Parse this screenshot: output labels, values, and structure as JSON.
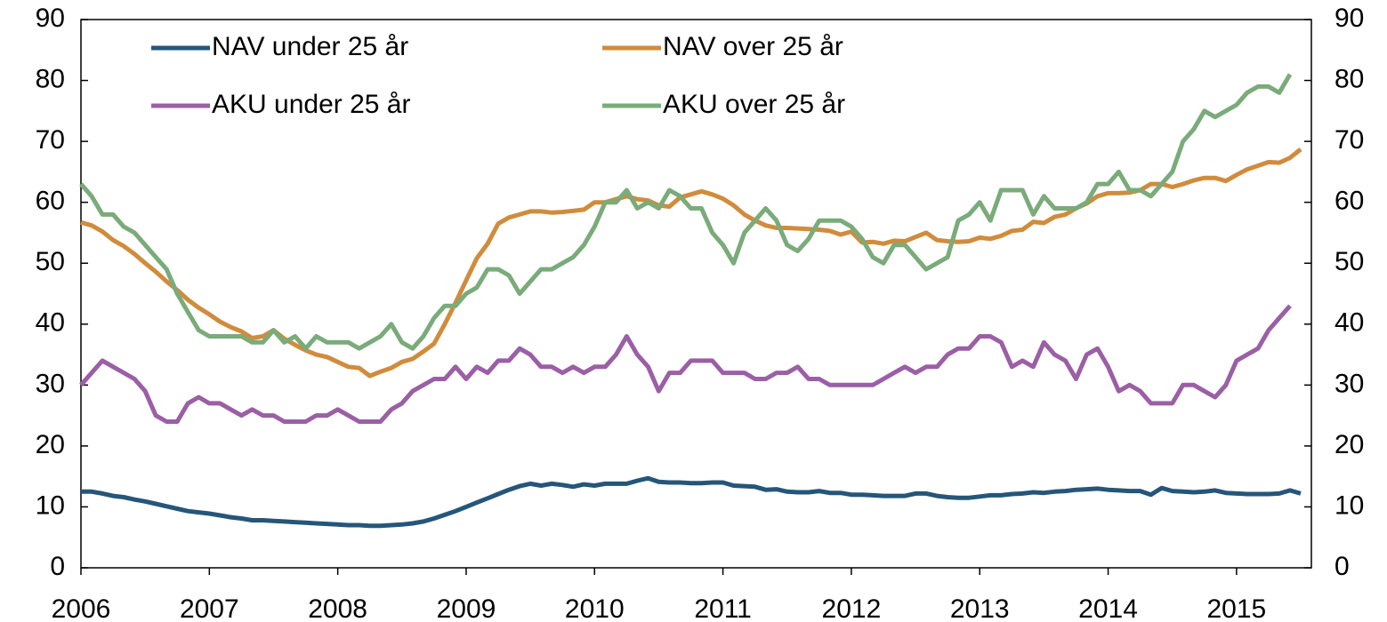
{
  "chart_data": {
    "type": "line",
    "x": [
      2006,
      2006.083,
      2006.167,
      2006.25,
      2006.333,
      2006.417,
      2006.5,
      2006.583,
      2006.667,
      2006.75,
      2006.833,
      2006.917,
      2007,
      2007.083,
      2007.167,
      2007.25,
      2007.333,
      2007.417,
      2007.5,
      2007.583,
      2007.667,
      2007.75,
      2007.833,
      2007.917,
      2008,
      2008.083,
      2008.167,
      2008.25,
      2008.333,
      2008.417,
      2008.5,
      2008.583,
      2008.667,
      2008.75,
      2008.833,
      2008.917,
      2009,
      2009.083,
      2009.167,
      2009.25,
      2009.333,
      2009.417,
      2009.5,
      2009.583,
      2009.667,
      2009.75,
      2009.833,
      2009.917,
      2010,
      2010.083,
      2010.167,
      2010.25,
      2010.333,
      2010.417,
      2010.5,
      2010.583,
      2010.667,
      2010.75,
      2010.833,
      2010.917,
      2011,
      2011.083,
      2011.167,
      2011.25,
      2011.333,
      2011.417,
      2011.5,
      2011.583,
      2011.667,
      2011.75,
      2011.833,
      2011.917,
      2012,
      2012.083,
      2012.167,
      2012.25,
      2012.333,
      2012.417,
      2012.5,
      2012.583,
      2012.667,
      2012.75,
      2012.833,
      2012.917,
      2013,
      2013.083,
      2013.167,
      2013.25,
      2013.333,
      2013.417,
      2013.5,
      2013.583,
      2013.667,
      2013.75,
      2013.833,
      2013.917,
      2014,
      2014.083,
      2014.167,
      2014.25,
      2014.333,
      2014.417,
      2014.5,
      2014.583,
      2014.667,
      2014.75,
      2014.833,
      2014.917,
      2015,
      2015.083,
      2015.167,
      2015.25,
      2015.333,
      2015.417,
      2015.5
    ],
    "series": [
      {
        "name": "NAV under 25 år",
        "color": "#25567a",
        "values": [
          12.5,
          12.5,
          12.2,
          11.8,
          11.6,
          11.2,
          10.9,
          10.5,
          10.1,
          9.7,
          9.3,
          9.1,
          8.9,
          8.6,
          8.3,
          8.1,
          7.8,
          7.8,
          7.7,
          7.6,
          7.5,
          7.4,
          7.3,
          7.2,
          7.1,
          7.0,
          7.0,
          6.9,
          6.9,
          7.0,
          7.1,
          7.3,
          7.6,
          8.1,
          8.7,
          9.3,
          10.0,
          10.7,
          11.4,
          12.1,
          12.8,
          13.4,
          13.8,
          13.5,
          13.8,
          13.6,
          13.3,
          13.7,
          13.5,
          13.8,
          13.8,
          13.8,
          14.3,
          14.7,
          14.1,
          14.0,
          14.0,
          13.9,
          13.9,
          14.0,
          14.0,
          13.5,
          13.4,
          13.3,
          12.8,
          12.9,
          12.5,
          12.4,
          12.4,
          12.6,
          12.3,
          12.3,
          12.0,
          12.0,
          11.9,
          11.8,
          11.8,
          11.8,
          12.2,
          12.2,
          11.8,
          11.6,
          11.5,
          11.5,
          11.7,
          11.9,
          11.9,
          12.1,
          12.2,
          12.4,
          12.3,
          12.5,
          12.6,
          12.8,
          12.9,
          13.0,
          12.8,
          12.7,
          12.6,
          12.6,
          12.0,
          13.1,
          12.6,
          12.5,
          12.4,
          12.5,
          12.7,
          12.3,
          12.2,
          12.1,
          12.1,
          12.1,
          12.2,
          12.7,
          12.2
        ]
      },
      {
        "name": "NAV over 25 år",
        "color": "#d08c3c",
        "values": [
          56.7,
          56.2,
          55.2,
          53.8,
          52.8,
          51.5,
          50.0,
          48.6,
          47.0,
          45.6,
          44.0,
          42.7,
          41.6,
          40.4,
          39.5,
          38.8,
          37.7,
          38.0,
          39.0,
          37.6,
          36.6,
          35.7,
          35.0,
          34.6,
          33.8,
          33.0,
          32.8,
          31.5,
          32.2,
          32.8,
          33.8,
          34.3,
          35.5,
          36.8,
          40.0,
          43.5,
          47.2,
          50.8,
          53.2,
          56.5,
          57.5,
          58.0,
          58.5,
          58.5,
          58.3,
          58.4,
          58.6,
          58.8,
          60.0,
          60.0,
          60.5,
          61.0,
          60.5,
          60.3,
          59.5,
          59.3,
          60.8,
          61.3,
          61.8,
          61.3,
          60.6,
          59.5,
          58.0,
          57.0,
          56.2,
          55.8,
          55.8,
          55.7,
          55.6,
          55.5,
          55.3,
          54.7,
          55.2,
          53.4,
          53.5,
          53.2,
          53.7,
          53.6,
          54.3,
          55.0,
          53.8,
          53.6,
          53.5,
          53.6,
          54.2,
          54.0,
          54.5,
          55.3,
          55.5,
          56.8,
          56.6,
          57.6,
          58.0,
          59.0,
          59.8,
          61.0,
          61.5,
          61.5,
          61.6,
          62.0,
          63.0,
          63.0,
          62.5,
          63.0,
          63.6,
          64.0,
          64.0,
          63.5,
          64.5,
          65.4,
          66.0,
          66.6,
          66.5,
          67.3,
          68.7
        ]
      },
      {
        "name": "AKU under 25 år",
        "color": "#9b5fa6",
        "values": [
          30,
          32,
          34,
          33,
          32,
          31,
          29,
          25,
          24,
          24,
          27,
          28,
          27,
          27,
          26,
          25,
          26,
          25,
          25,
          24,
          24,
          24,
          25,
          25,
          26,
          25,
          24,
          24,
          24,
          26,
          27,
          29,
          30,
          31,
          31,
          33,
          31,
          33,
          32,
          34,
          34,
          36,
          35,
          33,
          33,
          32,
          33,
          32,
          33,
          33,
          35,
          38,
          35,
          33,
          29,
          32,
          32,
          34,
          34,
          34,
          32,
          32,
          32,
          31,
          31,
          32,
          32,
          33,
          31,
          31,
          30,
          30,
          30,
          30,
          30,
          31,
          32,
          33,
          32,
          33,
          33,
          35,
          36,
          36,
          38,
          38,
          37,
          33,
          34,
          33,
          37,
          35,
          34,
          31,
          35,
          36,
          33,
          29,
          30,
          29,
          27,
          27,
          27,
          30,
          30,
          29,
          28,
          30,
          34,
          35,
          36,
          39,
          41,
          43,
          null
        ]
      },
      {
        "name": "AKU over 25 år",
        "color": "#7aab7a",
        "values": [
          63,
          61,
          58,
          58,
          56,
          55,
          53,
          51,
          49,
          45,
          42,
          39,
          38,
          38,
          38,
          38,
          37,
          37,
          39,
          37,
          38,
          36,
          38,
          37,
          37,
          37,
          36,
          37,
          38,
          40,
          37,
          36,
          38,
          41,
          43,
          43,
          45,
          46,
          49,
          49,
          48,
          45,
          47,
          49,
          49,
          50,
          51,
          53,
          56,
          60,
          60,
          62,
          59,
          60,
          59,
          62,
          61,
          59,
          59,
          55,
          53,
          50,
          55,
          57,
          59,
          57,
          53,
          52,
          54,
          57,
          57,
          57,
          56,
          54,
          51,
          50,
          53,
          53,
          51,
          49,
          50,
          51,
          57,
          58,
          60,
          57,
          62,
          62,
          62,
          58,
          61,
          59,
          59,
          59,
          60,
          63,
          63,
          65,
          62,
          62,
          61,
          63,
          65,
          70,
          72,
          75,
          74,
          75,
          76,
          78,
          79,
          79,
          78,
          81,
          null
        ]
      }
    ],
    "xlim": [
      2006,
      2015.583
    ],
    "xticks": [
      2006,
      2007,
      2008,
      2009,
      2010,
      2011,
      2012,
      2013,
      2014,
      2015
    ],
    "ylim": [
      0,
      90
    ],
    "yticks": [
      0,
      10,
      20,
      30,
      40,
      50,
      60,
      70,
      80,
      90
    ],
    "y2lim": [
      0,
      90
    ],
    "y2ticks": [
      0,
      10,
      20,
      30,
      40,
      50,
      60,
      70,
      80,
      90
    ],
    "legend": "upper left"
  }
}
